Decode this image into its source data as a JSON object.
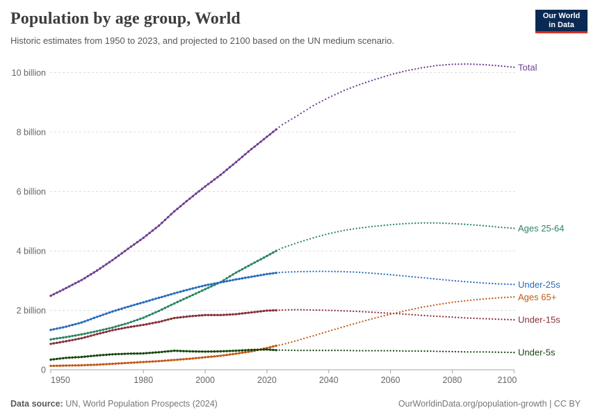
{
  "header": {
    "title": "Population by age group, World",
    "subtitle": "Historic estimates from 1950 to 2023, and projected to 2100 based on the UN medium scenario."
  },
  "logo": {
    "line1": "Our World",
    "line2": "in Data",
    "bg_color": "#0B2A53",
    "accent_color": "#D13328"
  },
  "footer": {
    "source_label": "Data source:",
    "source_text": "UN, World Population Prospects (2024)",
    "right_text": "OurWorldinData.org/population-growth | CC BY"
  },
  "colors": {
    "grid": "#DCDCDC",
    "axis": "#A3A3A3",
    "tick_text": "#666666"
  },
  "chart_data": {
    "type": "line",
    "title": "Population by age group, World",
    "unit": "billion people",
    "grid": true,
    "legend_position": "right-edge-labels",
    "projection_start": 2023,
    "x_axis": {
      "min": 1950,
      "max": 2100,
      "ticks": [
        1950,
        1980,
        2000,
        2020,
        2040,
        2060,
        2080,
        2100
      ]
    },
    "y_axis": {
      "min": 0,
      "max": 10,
      "ticks": [
        {
          "value": 0,
          "label": "0"
        },
        {
          "value": 2,
          "label": "2 billion"
        },
        {
          "value": 4,
          "label": "4 billion"
        },
        {
          "value": 6,
          "label": "6 billion"
        },
        {
          "value": 8,
          "label": "8 billion"
        },
        {
          "value": 10,
          "label": "10 billion"
        }
      ]
    },
    "series": [
      {
        "name": "Total",
        "color": "#6D3E91",
        "historic": {
          "years": [
            1950,
            1955,
            1960,
            1965,
            1970,
            1975,
            1980,
            1985,
            1990,
            1995,
            2000,
            2005,
            2010,
            2015,
            2020,
            2023
          ],
          "values": [
            2.49,
            2.75,
            3.02,
            3.34,
            3.69,
            4.07,
            4.44,
            4.85,
            5.33,
            5.76,
            6.17,
            6.56,
            6.99,
            7.43,
            7.84,
            8.09
          ]
        },
        "projected": {
          "years": [
            2023,
            2025,
            2030,
            2035,
            2040,
            2045,
            2050,
            2055,
            2060,
            2065,
            2070,
            2075,
            2080,
            2085,
            2090,
            2095,
            2100
          ],
          "values": [
            8.09,
            8.25,
            8.56,
            8.89,
            9.16,
            9.4,
            9.6,
            9.77,
            9.93,
            10.06,
            10.16,
            10.24,
            10.28,
            10.29,
            10.27,
            10.23,
            10.18
          ]
        }
      },
      {
        "name": "Ages 25-64",
        "color": "#2C8465",
        "historic": {
          "years": [
            1950,
            1955,
            1960,
            1965,
            1970,
            1975,
            1980,
            1985,
            1990,
            1995,
            2000,
            2005,
            2010,
            2015,
            2020,
            2023
          ],
          "values": [
            1.02,
            1.1,
            1.19,
            1.3,
            1.42,
            1.57,
            1.75,
            1.98,
            2.23,
            2.47,
            2.71,
            2.95,
            3.27,
            3.55,
            3.83,
            4.0
          ]
        },
        "projected": {
          "years": [
            2023,
            2025,
            2030,
            2035,
            2040,
            2045,
            2050,
            2055,
            2060,
            2065,
            2070,
            2075,
            2080,
            2085,
            2090,
            2095,
            2100
          ],
          "values": [
            4.0,
            4.1,
            4.28,
            4.44,
            4.58,
            4.69,
            4.77,
            4.83,
            4.88,
            4.92,
            4.94,
            4.94,
            4.92,
            4.89,
            4.85,
            4.8,
            4.76
          ]
        }
      },
      {
        "name": "Under-25s",
        "color": "#286BBB",
        "historic": {
          "years": [
            1950,
            1955,
            1960,
            1965,
            1970,
            1975,
            1980,
            1985,
            1990,
            1995,
            2000,
            2005,
            2010,
            2015,
            2020,
            2023
          ],
          "values": [
            1.34,
            1.45,
            1.59,
            1.78,
            1.96,
            2.12,
            2.27,
            2.42,
            2.57,
            2.71,
            2.84,
            2.94,
            3.04,
            3.13,
            3.22,
            3.26
          ]
        },
        "projected": {
          "years": [
            2023,
            2025,
            2030,
            2035,
            2040,
            2045,
            2050,
            2055,
            2060,
            2065,
            2070,
            2075,
            2080,
            2085,
            2090,
            2095,
            2100
          ],
          "values": [
            3.26,
            3.28,
            3.3,
            3.31,
            3.31,
            3.3,
            3.28,
            3.24,
            3.2,
            3.15,
            3.1,
            3.05,
            3.0,
            2.96,
            2.92,
            2.89,
            2.87
          ]
        }
      },
      {
        "name": "Ages 65+",
        "color": "#C05917",
        "historic": {
          "years": [
            1950,
            1955,
            1960,
            1965,
            1970,
            1975,
            1980,
            1985,
            1990,
            1995,
            2000,
            2005,
            2010,
            2015,
            2020,
            2023
          ],
          "values": [
            0.13,
            0.14,
            0.15,
            0.17,
            0.2,
            0.23,
            0.26,
            0.29,
            0.33,
            0.37,
            0.42,
            0.47,
            0.54,
            0.62,
            0.73,
            0.81
          ]
        },
        "projected": {
          "years": [
            2023,
            2025,
            2030,
            2035,
            2040,
            2045,
            2050,
            2055,
            2060,
            2065,
            2070,
            2075,
            2080,
            2085,
            2090,
            2095,
            2100
          ],
          "values": [
            0.81,
            0.85,
            0.99,
            1.14,
            1.3,
            1.45,
            1.6,
            1.74,
            1.87,
            1.99,
            2.1,
            2.19,
            2.27,
            2.33,
            2.38,
            2.42,
            2.45
          ]
        }
      },
      {
        "name": "Under-15s",
        "color": "#883039",
        "historic": {
          "years": [
            1950,
            1955,
            1960,
            1965,
            1970,
            1975,
            1980,
            1985,
            1990,
            1995,
            2000,
            2005,
            2010,
            2015,
            2020,
            2023
          ],
          "values": [
            0.87,
            0.96,
            1.06,
            1.2,
            1.33,
            1.43,
            1.51,
            1.61,
            1.74,
            1.8,
            1.84,
            1.84,
            1.87,
            1.93,
            1.99,
            2.0
          ]
        },
        "projected": {
          "years": [
            2023,
            2025,
            2030,
            2035,
            2040,
            2045,
            2050,
            2055,
            2060,
            2065,
            2070,
            2075,
            2080,
            2085,
            2090,
            2095,
            2100
          ],
          "values": [
            2.0,
            2.01,
            2.02,
            2.01,
            2.0,
            1.98,
            1.96,
            1.93,
            1.9,
            1.87,
            1.83,
            1.8,
            1.77,
            1.74,
            1.72,
            1.7,
            1.68
          ]
        }
      },
      {
        "name": "Under-5s",
        "color": "#18470F",
        "historic": {
          "years": [
            1950,
            1955,
            1960,
            1965,
            1970,
            1975,
            1980,
            1985,
            1990,
            1995,
            2000,
            2005,
            2010,
            2015,
            2020,
            2023
          ],
          "values": [
            0.34,
            0.4,
            0.43,
            0.48,
            0.52,
            0.54,
            0.55,
            0.59,
            0.64,
            0.62,
            0.61,
            0.62,
            0.64,
            0.67,
            0.68,
            0.66
          ]
        },
        "projected": {
          "years": [
            2023,
            2025,
            2030,
            2035,
            2040,
            2045,
            2050,
            2055,
            2060,
            2065,
            2070,
            2075,
            2080,
            2085,
            2090,
            2095,
            2100
          ],
          "values": [
            0.66,
            0.66,
            0.65,
            0.65,
            0.65,
            0.65,
            0.64,
            0.64,
            0.64,
            0.63,
            0.63,
            0.62,
            0.61,
            0.6,
            0.6,
            0.59,
            0.58
          ]
        }
      }
    ]
  }
}
